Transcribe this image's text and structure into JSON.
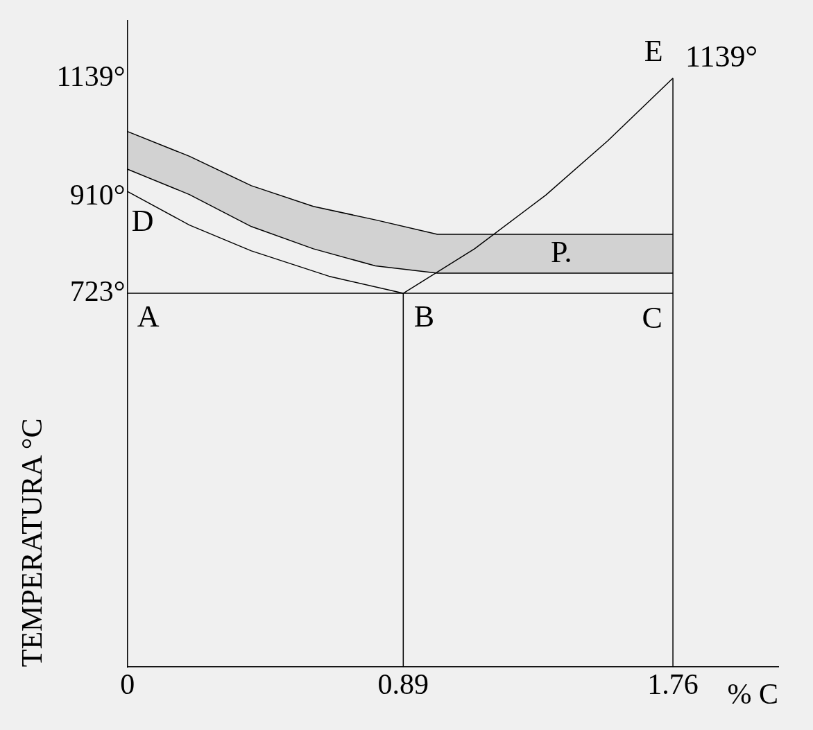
{
  "chart_data": {
    "type": "line",
    "xlabel": "% C",
    "ylabel": "TEMPERATURA °C",
    "xlim": [
      0,
      2.1
    ],
    "ylim": [
      0,
      1250
    ],
    "xticks": [
      0,
      0.89,
      1.76
    ],
    "yticks": [
      {
        "value": 723,
        "label": "723°"
      },
      {
        "value": 910,
        "label": "910°"
      },
      {
        "value": 1139,
        "label": "1139°"
      }
    ],
    "grid": false,
    "legend": false,
    "marker": "none",
    "line_style": "solid",
    "series": [
      {
        "color": "#000000",
        "x": [
          0,
          0.2,
          0.4,
          0.65,
          0.89
        ],
        "values": [
          920,
          855,
          805,
          756,
          723
        ]
      },
      {
        "color": "#000000",
        "x": [
          0,
          0.2,
          0.4,
          0.6,
          0.8,
          1.0,
          1.76
        ],
        "values": [
          963,
          914,
          852,
          809,
          776,
          762,
          762
        ],
        "lower": [
          963,
          914,
          852,
          809,
          776,
          762,
          762
        ],
        "upper": [
          1036,
          988,
          931,
          891,
          865,
          837,
          837
        ]
      },
      {
        "color": "#000000",
        "x": [
          0,
          0.2,
          0.4,
          0.6,
          0.8,
          1.0,
          1.76
        ],
        "values": [
          1036,
          988,
          931,
          891,
          865,
          837,
          837
        ]
      },
      {
        "color": "#000000",
        "x": [
          0.89,
          1.12,
          1.35,
          1.55,
          1.76
        ],
        "values": [
          723,
          809,
          913,
          1018,
          1139
        ]
      },
      {
        "color": "#000000",
        "x": [
          0,
          1.76
        ],
        "values": [
          723,
          723
        ]
      },
      {
        "color": "#000000",
        "x": [
          0.89,
          0.89
        ],
        "values": [
          0,
          723
        ]
      },
      {
        "color": "#000000",
        "x": [
          1.76,
          1.76
        ],
        "values": [
          0,
          1139
        ]
      }
    ],
    "annotations": [
      {
        "text": "A",
        "x": 0,
        "y": 723
      },
      {
        "text": "B",
        "x": 0.89,
        "y": 723
      },
      {
        "text": "C",
        "x": 1.76,
        "y": 723
      },
      {
        "text": "D",
        "x": 0,
        "y": 920
      },
      {
        "text": "E",
        "x": 1.76,
        "y": 1139
      },
      {
        "text": "1139°",
        "x": 1.76,
        "y": 1139
      },
      {
        "text": "P.",
        "x": 1.4,
        "y": 837
      }
    ]
  }
}
